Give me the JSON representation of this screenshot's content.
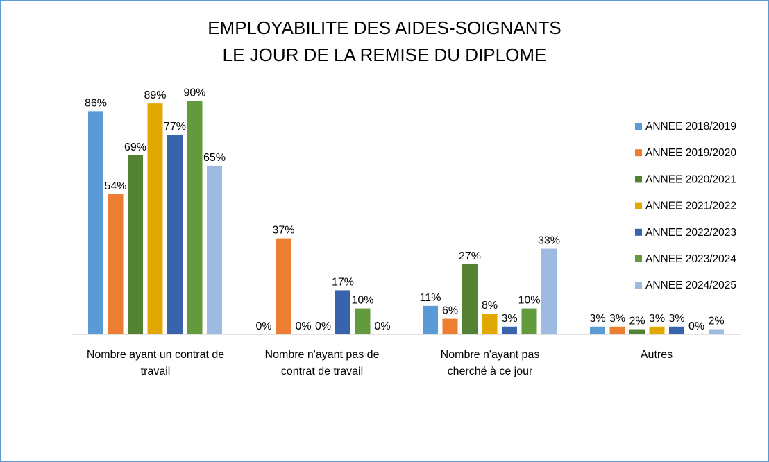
{
  "chart_data": {
    "type": "bar",
    "title_lines": [
      "EMPLOYABILITE DES AIDES-SOIGNANTS",
      "LE JOUR DE LA REMISE DU DIPLOME"
    ],
    "xlabel": "",
    "ylabel": "",
    "ylim": [
      0,
      100
    ],
    "grid": false,
    "legend_position": "right",
    "categories": [
      [
        "Nombre ayant un contrat de",
        "travail"
      ],
      [
        "Nombre n'ayant pas de",
        "contrat de travail"
      ],
      [
        "Nombre n'ayant pas",
        "cherché à ce jour"
      ],
      [
        "Autres"
      ]
    ],
    "series": [
      {
        "name": "ANNEE 2018/2019",
        "color": "#5b9bd5",
        "values": [
          86,
          0,
          11,
          3
        ],
        "labels": [
          "86%",
          "0%",
          "11%",
          "3%"
        ]
      },
      {
        "name": "ANNEE 2019/2020",
        "color": "#ed7d31",
        "values": [
          54,
          37,
          6,
          3
        ],
        "labels": [
          "54%",
          "37%",
          "6%",
          "3%"
        ]
      },
      {
        "name": "ANNEE 2020/2021",
        "color": "#548235",
        "values": [
          69,
          0,
          27,
          2
        ],
        "labels": [
          "69%",
          "0%",
          "27%",
          "2%"
        ]
      },
      {
        "name": "ANNEE 2021/2022",
        "color": "#e1a800",
        "values": [
          89,
          0,
          8,
          3
        ],
        "labels": [
          "89%",
          "0%",
          "8%",
          "3%"
        ]
      },
      {
        "name": "ANNEE 2022/2023",
        "color": "#3a63ad",
        "values": [
          77,
          17,
          3,
          3
        ],
        "labels": [
          "77%",
          "17%",
          "3%",
          "3%"
        ]
      },
      {
        "name": "ANNEE 2023/2024",
        "color": "#629a3d",
        "values": [
          90,
          10,
          10,
          0
        ],
        "labels": [
          "90%",
          "10%",
          "10%",
          "0%"
        ]
      },
      {
        "name": "ANNEE 2024/2025",
        "color": "#9dbbe1",
        "values": [
          65,
          0,
          33,
          2
        ],
        "labels": [
          "65%",
          "0%",
          "33%",
          "2%"
        ]
      }
    ]
  }
}
